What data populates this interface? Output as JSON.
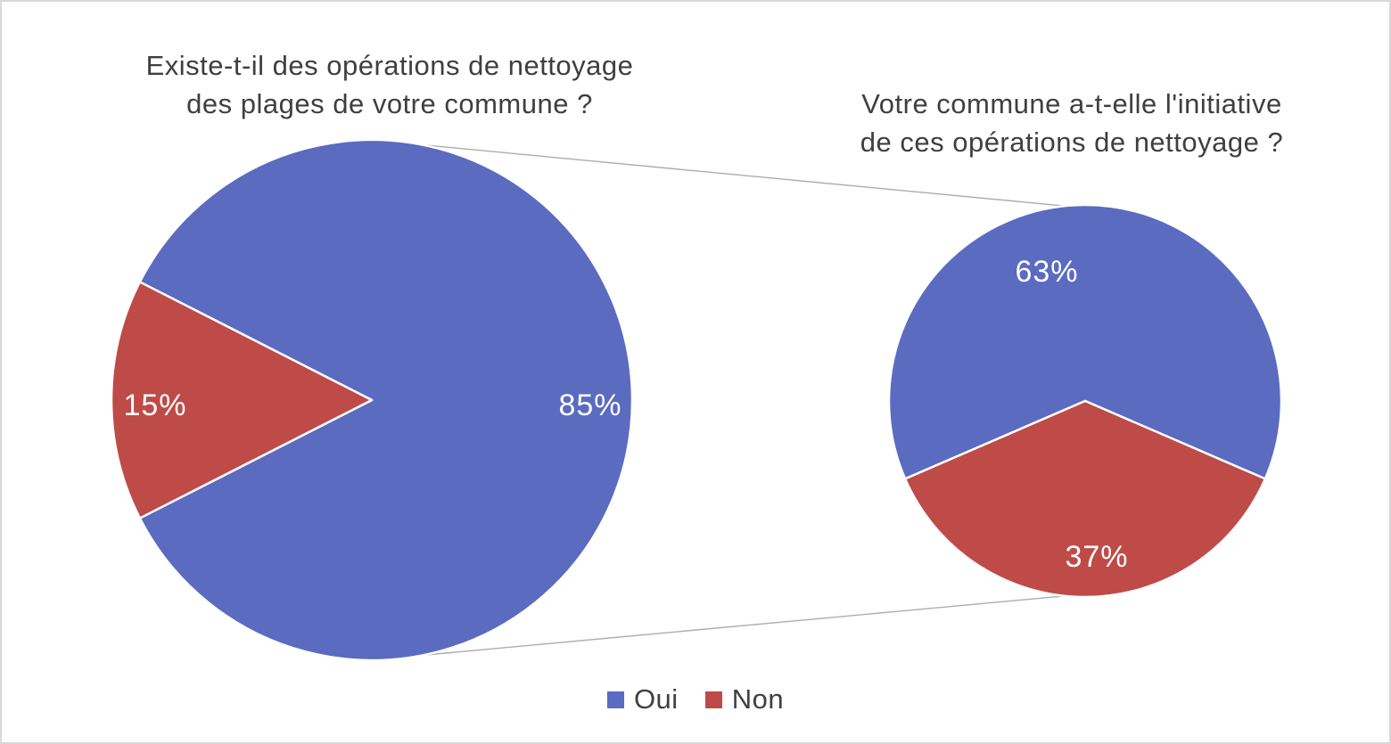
{
  "chart_data": {
    "type": "pie",
    "layout": "pie-of-pie",
    "background": "#ffffff",
    "charts": [
      {
        "title_lines": [
          "Existe-t-il des opérations de nettoyage",
          "des plages de votre commune ?"
        ],
        "start_angle": 297,
        "slices": [
          {
            "label": "Oui",
            "value": 85,
            "display": "85%",
            "color": "#5B6BC0"
          },
          {
            "label": "Non",
            "value": 15,
            "display": "15%",
            "color": "#BE4B48"
          }
        ]
      },
      {
        "title_lines": [
          "Votre commune a-t-elle l'initiative",
          "de ces opérations de nettoyage ?"
        ],
        "start_angle": 246.6,
        "slices": [
          {
            "label": "Oui",
            "value": 63,
            "display": "63%",
            "color": "#5B6BC0"
          },
          {
            "label": "Non",
            "value": 37,
            "display": "37%",
            "color": "#BE4B48"
          }
        ]
      }
    ],
    "legend": [
      {
        "label": "Oui",
        "color": "#5B6BC0"
      },
      {
        "label": "Non",
        "color": "#BE4B48"
      }
    ],
    "connector_line_color": "#ADADAD"
  }
}
